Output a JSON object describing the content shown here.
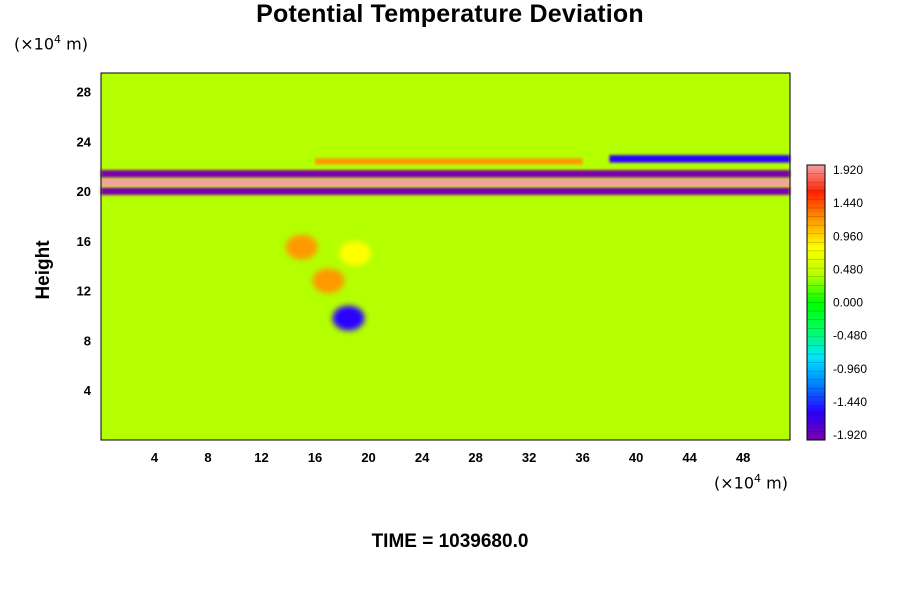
{
  "chart_data": {
    "type": "heatmap",
    "title": "Potential Temperature Deviation",
    "ylabel": "Height",
    "x_unit_base": "(×10",
    "x_unit_exp": "4",
    "x_unit_tail": " m)",
    "y_unit_base": "(×10",
    "y_unit_exp": "4",
    "y_unit_tail": " m)",
    "footer": "TIME = 1039680.0",
    "xlim": [
      0,
      51.5
    ],
    "ylim": [
      0,
      29.5
    ],
    "x_ticks": [
      4,
      8,
      12,
      16,
      20,
      24,
      28,
      32,
      36,
      40,
      44,
      48
    ],
    "y_ticks": [
      4,
      8,
      12,
      16,
      20,
      24,
      28
    ],
    "colorbar": {
      "min": -1.92,
      "max": 1.92,
      "labels": [
        "1.920",
        "1.440",
        "0.960",
        "0.480",
        "0.000",
        "-0.480",
        "-0.960",
        "-1.440",
        "-1.920"
      ],
      "colors": [
        "#7a00a8",
        "#2a00ff",
        "#0080ff",
        "#00e5ff",
        "#00ff60",
        "#00ff00",
        "#b4ff00",
        "#ffff00",
        "#ff9900",
        "#ff2200",
        "#f4a0a0"
      ]
    },
    "features": [
      {
        "kind": "layer",
        "x0": 0,
        "x1": 51.5,
        "y": 20.0,
        "value": -1.9,
        "thickness": 0.6
      },
      {
        "kind": "layer",
        "x0": 0,
        "x1": 51.5,
        "y": 20.7,
        "value": 1.9,
        "thickness": 0.6
      },
      {
        "kind": "layer",
        "x0": 0,
        "x1": 51.5,
        "y": 21.4,
        "value": -1.9,
        "thickness": 0.6
      },
      {
        "kind": "layer",
        "x0": 16,
        "x1": 36,
        "y": 22.4,
        "value": 1.2,
        "thickness": 0.5
      },
      {
        "kind": "layer",
        "x0": 38,
        "x1": 51.5,
        "y": 22.6,
        "value": -1.5,
        "thickness": 0.6
      },
      {
        "kind": "blob",
        "x": 15,
        "y": 15.5,
        "value": 1.0
      },
      {
        "kind": "blob",
        "x": 17,
        "y": 12.8,
        "value": 1.2
      },
      {
        "kind": "blob",
        "x": 19,
        "y": 15.0,
        "value": 0.8
      },
      {
        "kind": "blob",
        "x": 18.5,
        "y": 9.8,
        "value": -1.5
      }
    ]
  }
}
